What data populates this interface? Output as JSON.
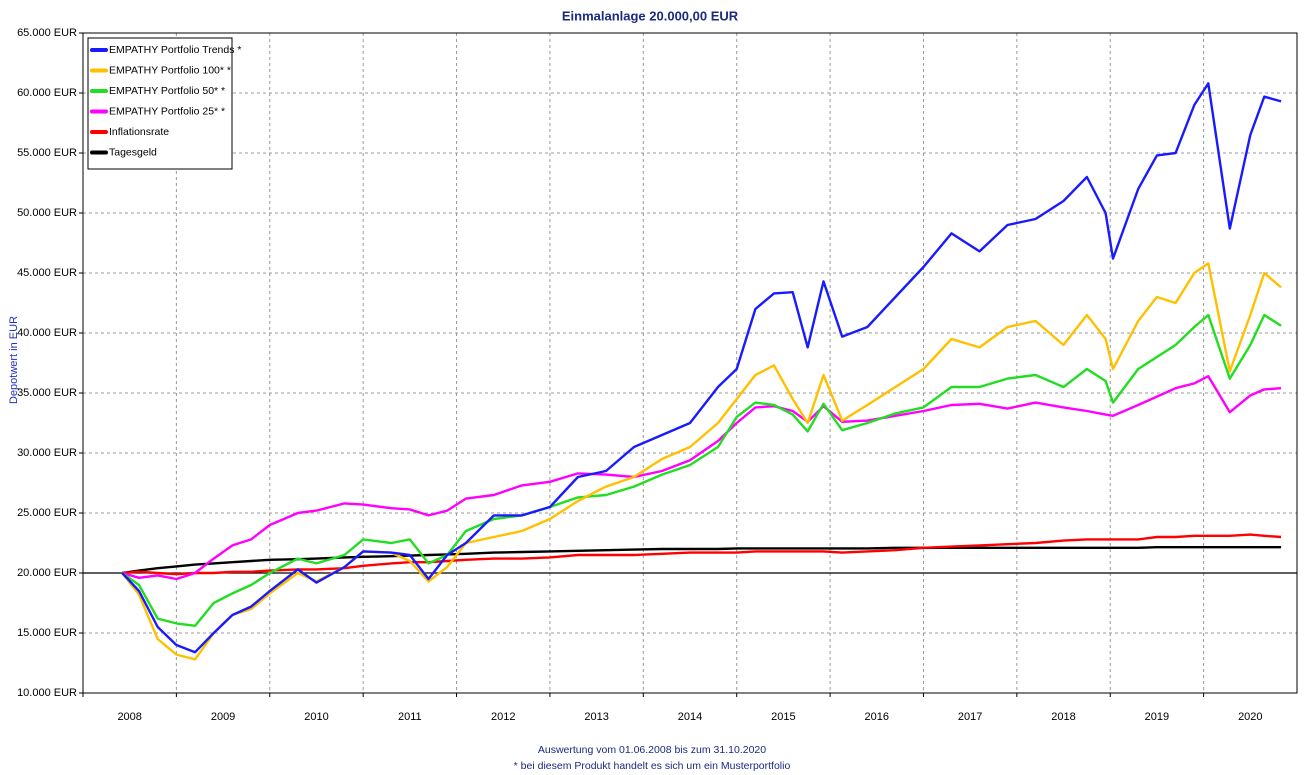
{
  "chart_data": {
    "type": "line",
    "title": "Einmalanlage 20.000,00 EUR",
    "y_label": "Depotwert in EUR",
    "footnotes": [
      "Auswertung vom 01.06.2008 bis zum 31.10.2020",
      "* bei diesem Produkt handelt es sich um ein Musterportfolio"
    ],
    "xlim": [
      2008,
      2021
    ],
    "xticks": [
      2008,
      2009,
      2010,
      2011,
      2012,
      2013,
      2014,
      2015,
      2016,
      2017,
      2018,
      2019,
      2020
    ],
    "ylim": [
      10000,
      65000
    ],
    "yticks": [
      {
        "value": 10000,
        "label": "10.000 EUR"
      },
      {
        "value": 15000,
        "label": "15.000 EUR"
      },
      {
        "value": 20000,
        "label": "20.000 EUR"
      },
      {
        "value": 25000,
        "label": "25.000 EUR"
      },
      {
        "value": 30000,
        "label": "30.000 EUR"
      },
      {
        "value": 35000,
        "label": "35.000 EUR"
      },
      {
        "value": 40000,
        "label": "40.000 EUR"
      },
      {
        "value": 45000,
        "label": "45.000 EUR"
      },
      {
        "value": 50000,
        "label": "50.000 EUR"
      },
      {
        "value": 55000,
        "label": "55.000 EUR"
      },
      {
        "value": 60000,
        "label": "60.000 EUR"
      },
      {
        "value": 65000,
        "label": "65.000 EUR"
      }
    ],
    "grid": true,
    "reference_line": 20000,
    "legend": "upper left",
    "x": [
      2008.42,
      2008.6,
      2008.8,
      2009.0,
      2009.2,
      2009.4,
      2009.6,
      2009.8,
      2010.0,
      2010.3,
      2010.5,
      2010.8,
      2011.0,
      2011.3,
      2011.5,
      2011.7,
      2011.9,
      2012.1,
      2012.4,
      2012.7,
      2013.0,
      2013.3,
      2013.6,
      2013.9,
      2014.2,
      2014.5,
      2014.8,
      2015.0,
      2015.2,
      2015.4,
      2015.6,
      2015.76,
      2015.93,
      2016.13,
      2016.4,
      2016.7,
      2017.0,
      2017.3,
      2017.6,
      2017.9,
      2018.2,
      2018.5,
      2018.75,
      2018.95,
      2019.03,
      2019.3,
      2019.5,
      2019.7,
      2019.9,
      2020.05,
      2020.28,
      2020.5,
      2020.65,
      2020.83
    ],
    "series": [
      {
        "name": "EMPATHY Portfolio Trends *",
        "color": "#1a1aff",
        "values": [
          20000,
          18500,
          15500,
          14000,
          13400,
          15000,
          16500,
          17200,
          18500,
          20300,
          19200,
          20500,
          21800,
          21700,
          21500,
          19500,
          21500,
          22500,
          24800,
          24800,
          25500,
          28000,
          28500,
          30500,
          31500,
          32500,
          35500,
          37000,
          42000,
          43300,
          43400,
          38800,
          44300,
          39700,
          40500,
          43000,
          45500,
          48300,
          46800,
          49000,
          49500,
          51000,
          53000,
          50000,
          46200,
          52000,
          54800,
          55000,
          59000,
          60800,
          48700,
          56500,
          59700,
          59300
        ]
      },
      {
        "name": "EMPATHY Portfolio 100* *",
        "color": "#ffc000",
        "values": [
          20000,
          18200,
          14500,
          13200,
          12800,
          15000,
          16500,
          17000,
          18300,
          20000,
          19300,
          20500,
          21800,
          21700,
          21000,
          19300,
          20500,
          22500,
          23000,
          23500,
          24500,
          26000,
          27200,
          28000,
          29500,
          30500,
          32500,
          34500,
          36500,
          37300,
          34500,
          32500,
          36500,
          32700,
          34000,
          35500,
          37000,
          39500,
          38800,
          40500,
          41000,
          39000,
          41500,
          39500,
          37000,
          41000,
          43000,
          42500,
          45000,
          45800,
          36800,
          41500,
          45000,
          43800
        ]
      },
      {
        "name": "EMPATHY Portfolio 50* *",
        "color": "#22dd22",
        "values": [
          20000,
          19000,
          16200,
          15800,
          15600,
          17500,
          18300,
          19000,
          20000,
          21200,
          20800,
          21500,
          22800,
          22500,
          22800,
          20800,
          21500,
          23500,
          24500,
          24800,
          25500,
          26300,
          26500,
          27200,
          28200,
          29000,
          30500,
          33000,
          34200,
          34000,
          33200,
          31800,
          34100,
          31900,
          32500,
          33300,
          33800,
          35500,
          35500,
          36200,
          36500,
          35500,
          37000,
          36000,
          34200,
          37000,
          38000,
          39000,
          40500,
          41500,
          36200,
          39000,
          41500,
          40600
        ]
      },
      {
        "name": "EMPATHY Portfolio 25* *",
        "color": "#ff00ff",
        "values": [
          20000,
          19600,
          19800,
          19500,
          20000,
          21200,
          22300,
          22800,
          24000,
          25000,
          25200,
          25800,
          25700,
          25400,
          25300,
          24800,
          25200,
          26200,
          26500,
          27300,
          27600,
          28300,
          28200,
          28000,
          28500,
          29400,
          31000,
          32500,
          33800,
          33900,
          33500,
          32600,
          33900,
          32600,
          32700,
          33100,
          33500,
          34000,
          34100,
          33700,
          34200,
          33800,
          33500,
          33200,
          33100,
          34000,
          34700,
          35400,
          35800,
          36400,
          33400,
          34800,
          35300,
          35400
        ]
      },
      {
        "name": "Inflationsrate",
        "color": "#ff0000",
        "values": [
          20000,
          20100,
          20000,
          19900,
          20000,
          20000,
          20100,
          20100,
          20200,
          20300,
          20300,
          20400,
          20600,
          20800,
          20900,
          20900,
          21000,
          21100,
          21200,
          21200,
          21300,
          21500,
          21500,
          21500,
          21600,
          21700,
          21700,
          21700,
          21800,
          21800,
          21800,
          21800,
          21800,
          21700,
          21800,
          21900,
          22100,
          22200,
          22300,
          22400,
          22500,
          22700,
          22800,
          22800,
          22800,
          22800,
          23000,
          23000,
          23100,
          23100,
          23100,
          23200,
          23100,
          23000
        ]
      },
      {
        "name": "Tagesgeld",
        "color": "#000000",
        "values": [
          20000,
          20200,
          20400,
          20550,
          20700,
          20800,
          20900,
          21000,
          21100,
          21150,
          21200,
          21300,
          21350,
          21400,
          21450,
          21500,
          21550,
          21600,
          21700,
          21750,
          21800,
          21850,
          21900,
          21950,
          22000,
          22000,
          22000,
          22050,
          22050,
          22050,
          22050,
          22050,
          22050,
          22050,
          22050,
          22100,
          22100,
          22100,
          22100,
          22100,
          22100,
          22100,
          22100,
          22100,
          22100,
          22100,
          22150,
          22150,
          22150,
          22150,
          22150,
          22150,
          22150,
          22150
        ]
      }
    ]
  }
}
